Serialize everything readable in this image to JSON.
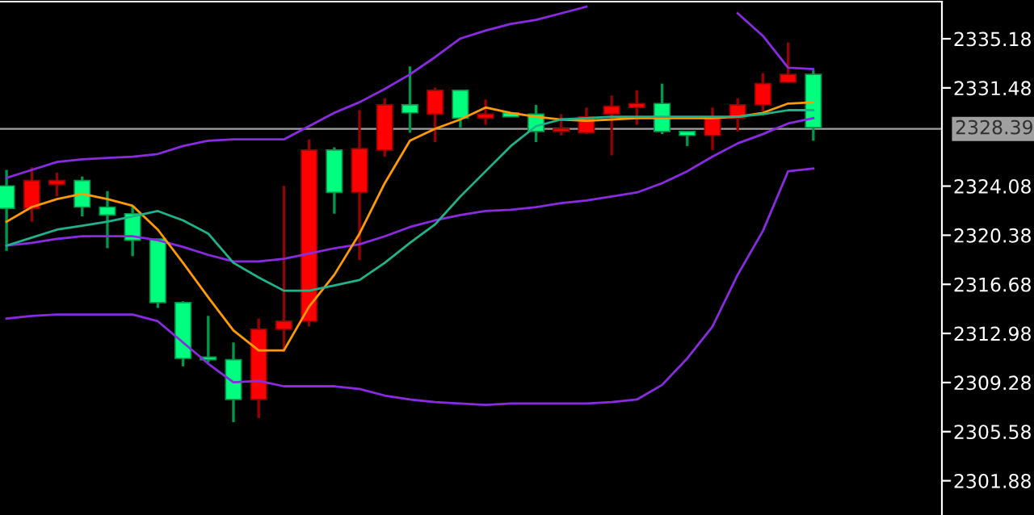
{
  "chart_data": {
    "type": "candlestick",
    "categories": [
      null,
      null,
      null,
      null,
      null,
      null,
      null,
      null,
      null,
      null,
      null,
      null,
      null,
      null,
      null,
      null,
      null,
      null,
      null,
      null,
      null,
      null,
      null,
      null,
      null,
      null,
      null,
      null,
      null,
      null,
      null,
      null,
      null
    ],
    "ohlc": [
      [
        2322.4,
        2325.3,
        2319.2,
        2324.1
      ],
      [
        2324.5,
        2325.5,
        2321.4,
        2322.4
      ],
      [
        2324.5,
        2325.1,
        2323.3,
        2324.2
      ],
      [
        2322.5,
        2324.8,
        2321.8,
        2324.5
      ],
      [
        2321.9,
        2323.7,
        2319.4,
        2322.5
      ],
      [
        2320.0,
        2322.6,
        2318.8,
        2322.0
      ],
      [
        2315.3,
        2320.1,
        2314.9,
        2320.1
      ],
      [
        2311.1,
        2315.4,
        2310.5,
        2315.3
      ],
      [
        2311.0,
        2314.3,
        2310.8,
        2311.2
      ],
      [
        2308.0,
        2312.3,
        2306.3,
        2311.0
      ],
      [
        2313.3,
        2314.1,
        2306.6,
        2308.0
      ],
      [
        2313.9,
        2324.1,
        2311.6,
        2313.3
      ],
      [
        2326.8,
        2327.6,
        2313.5,
        2313.9
      ],
      [
        2323.6,
        2327.0,
        2322.0,
        2326.8
      ],
      [
        2326.9,
        2329.8,
        2318.5,
        2323.6
      ],
      [
        2330.2,
        2330.7,
        2326.3,
        2326.8
      ],
      [
        2329.6,
        2333.1,
        2328.1,
        2330.2
      ],
      [
        2331.3,
        2331.5,
        2327.4,
        2329.5
      ],
      [
        2329.2,
        2331.3,
        2328.5,
        2331.3
      ],
      [
        2329.5,
        2330.6,
        2328.7,
        2329.2
      ],
      [
        2329.3,
        2329.6,
        2329.3,
        2329.6
      ],
      [
        2328.2,
        2330.2,
        2327.4,
        2329.5
      ],
      [
        2328.4,
        2329.5,
        2327.9,
        2328.2
      ],
      [
        2329.3,
        2330.0,
        2328.0,
        2328.1
      ],
      [
        2330.1,
        2330.9,
        2326.4,
        2329.5
      ],
      [
        2330.3,
        2331.3,
        2328.7,
        2330.0
      ],
      [
        2328.2,
        2331.8,
        2328.0,
        2330.3
      ],
      [
        2327.9,
        2328.2,
        2327.1,
        2328.2
      ],
      [
        2329.3,
        2330.0,
        2326.8,
        2327.9
      ],
      [
        2330.2,
        2330.7,
        2328.2,
        2329.2
      ],
      [
        2331.8,
        2332.6,
        2329.7,
        2330.2
      ],
      [
        2332.5,
        2334.9,
        2331.9,
        2331.9
      ],
      [
        2328.5,
        2332.8,
        2327.5,
        2332.5
      ]
    ],
    "colors": [
      "#00ff7f",
      "#ff0000",
      "#ff0000",
      "#00ff7f",
      "#00ff7f",
      "#00ff7f",
      "#00ff7f",
      "#00ff7f",
      "#00ff7f",
      "#00ff7f",
      "#ff0000",
      "#ff0000",
      "#ff0000",
      "#00ff7f",
      "#ff0000",
      "#ff0000",
      "#00ff7f",
      "#ff0000",
      "#00ff7f",
      "#ff0000",
      "#00ff7f",
      "#00ff7f",
      "#ff0000",
      "#ff0000",
      "#ff0000",
      "#ff0000",
      "#00ff7f",
      "#00ff7f",
      "#ff0000",
      "#ff0000",
      "#ff0000",
      "#ff0000",
      "#00ff7f"
    ],
    "series": [
      {
        "type": "line",
        "color": "#8a2be2",
        "values": [
          2324.7,
          2325.3,
          2325.9,
          2326.1,
          2326.2,
          2326.3,
          2326.5,
          2327.1,
          2327.5,
          2327.6,
          2327.6,
          2327.6,
          2328.6,
          2329.6,
          2330.4,
          2331.4,
          2332.5,
          2333.8,
          2335.2,
          2335.8,
          2336.3,
          2336.6,
          2337.1,
          2337.6,
          null,
          null,
          null,
          null,
          null,
          2337.1,
          2335.4,
          2333.0,
          2332.9
        ]
      },
      {
        "type": "line",
        "color": "#8a2be2",
        "values": [
          2319.6,
          2319.8,
          2320.1,
          2320.3,
          2320.3,
          2320.3,
          2320.0,
          2319.5,
          2318.9,
          2318.4,
          2318.4,
          2318.6,
          2319.0,
          2319.4,
          2319.7,
          2320.3,
          2321.0,
          2321.5,
          2321.9,
          2322.2,
          2322.3,
          2322.5,
          2322.8,
          2323.0,
          2323.3,
          2323.6,
          2324.3,
          2325.2,
          2326.3,
          2327.3,
          2328.0,
          2328.8,
          2329.2
        ]
      },
      {
        "type": "line",
        "color": "#8a2be2",
        "values": [
          2314.1,
          2314.3,
          2314.4,
          2314.4,
          2314.4,
          2314.4,
          2313.9,
          2312.3,
          2310.7,
          2309.3,
          2309.4,
          2309.0,
          2309.0,
          2309.0,
          2308.8,
          2308.3,
          2308.0,
          2307.8,
          2307.7,
          2307.6,
          2307.7,
          2307.7,
          2307.7,
          2307.7,
          2307.8,
          2308.0,
          2309.1,
          2311.1,
          2313.5,
          2317.4,
          2320.7,
          2325.2,
          2325.4
        ]
      },
      {
        "type": "line",
        "color": "#ff9a00",
        "values": [
          2321.4,
          2322.5,
          2323.1,
          2323.5,
          2323.1,
          2322.6,
          2320.8,
          2318.3,
          2315.7,
          2313.2,
          2311.7,
          2311.7,
          2315.0,
          2317.4,
          2320.5,
          2324.3,
          2327.5,
          2328.4,
          2329.1,
          2330.0,
          2329.6,
          2329.3,
          2329.1,
          2329.0,
          2329.1,
          2329.2,
          2329.2,
          2329.2,
          2329.2,
          2329.3,
          2329.6,
          2330.3,
          2330.4
        ]
      },
      {
        "type": "line",
        "color": "#20b28a",
        "values": [
          2319.6,
          2320.2,
          2320.8,
          2321.1,
          2321.4,
          2321.8,
          2322.2,
          2321.5,
          2320.5,
          2318.3,
          2317.2,
          2316.2,
          2316.2,
          2316.6,
          2317.0,
          2318.3,
          2319.8,
          2321.2,
          2323.3,
          2325.2,
          2327.1,
          2328.6,
          2329.1,
          2329.2,
          2329.3,
          2329.3,
          2329.3,
          2329.3,
          2329.3,
          2329.3,
          2329.5,
          2329.8,
          2329.8
        ]
      }
    ],
    "ref_lines": [
      {
        "axis": "y",
        "value": 2328.39,
        "label": "2328.39",
        "color": "#a0a0a0"
      }
    ],
    "ylim": [
      2299.3,
      2337.98
    ],
    "yticks": [
      2301.88,
      2305.58,
      2309.28,
      2312.98,
      2316.68,
      2320.38,
      2324.08,
      2331.48,
      2335.18
    ],
    "grid": false,
    "tick_labels": "y"
  }
}
